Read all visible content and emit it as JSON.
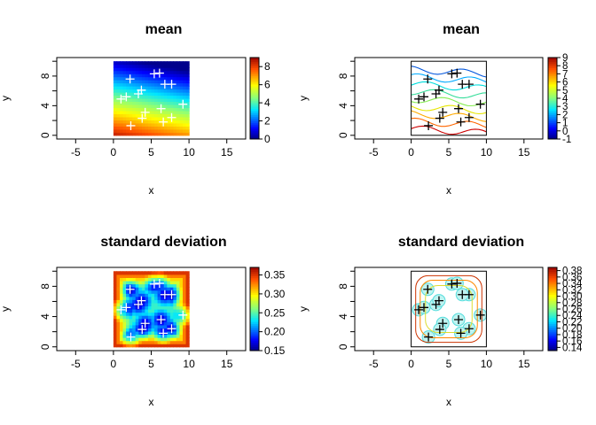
{
  "chart_data": [
    {
      "type": "heatmap",
      "title": "mean",
      "xlabel": "x",
      "ylabel": "y",
      "x_ticks": [
        "-5",
        "0",
        "5",
        "10",
        "15"
      ],
      "y_ticks": [
        "0",
        "4",
        "8"
      ],
      "xlim": [
        -7.5,
        17.5
      ],
      "ylim": [
        -0.5,
        10.5
      ],
      "grid_extent": {
        "x": [
          0,
          10
        ],
        "y": [
          0,
          10
        ]
      },
      "colorbar": {
        "ticks": [
          "0",
          "2",
          "4",
          "6",
          "8"
        ],
        "range": [
          0,
          9
        ]
      },
      "points": [
        [
          2.2,
          7.6
        ],
        [
          5.4,
          8.3
        ],
        [
          6.1,
          8.4
        ],
        [
          7.7,
          6.9
        ],
        [
          6.8,
          6.9
        ],
        [
          3.3,
          5.6
        ],
        [
          3.7,
          6.1
        ],
        [
          1.0,
          4.9
        ],
        [
          1.7,
          5.2
        ],
        [
          9.2,
          4.2
        ],
        [
          4.2,
          3.1
        ],
        [
          3.8,
          2.3
        ],
        [
          6.3,
          3.6
        ],
        [
          7.7,
          2.4
        ],
        [
          6.6,
          1.8
        ],
        [
          2.3,
          1.3
        ]
      ],
      "marker": "+"
    },
    {
      "type": "contour",
      "title": "mean",
      "xlabel": "x",
      "ylabel": "y",
      "x_ticks": [
        "-5",
        "0",
        "5",
        "10",
        "15"
      ],
      "y_ticks": [
        "0",
        "4",
        "8"
      ],
      "xlim": [
        -7.5,
        17.5
      ],
      "ylim": [
        -0.5,
        10.5
      ],
      "colorbar": {
        "ticks": [
          "9",
          "8",
          "7",
          "6",
          "5",
          "4",
          "3",
          "2",
          "1",
          "0",
          "-1"
        ],
        "range": [
          -1,
          9
        ]
      },
      "points": [
        [
          2.2,
          7.6
        ],
        [
          5.4,
          8.3
        ],
        [
          6.1,
          8.4
        ],
        [
          7.7,
          6.9
        ],
        [
          6.8,
          6.9
        ],
        [
          3.3,
          5.6
        ],
        [
          3.7,
          6.1
        ],
        [
          1.0,
          4.9
        ],
        [
          1.7,
          5.2
        ],
        [
          9.2,
          4.2
        ],
        [
          4.2,
          3.1
        ],
        [
          3.8,
          2.3
        ],
        [
          6.3,
          3.6
        ],
        [
          7.7,
          2.4
        ],
        [
          6.6,
          1.8
        ],
        [
          2.3,
          1.3
        ]
      ],
      "marker": "+"
    },
    {
      "type": "heatmap",
      "title": "standard deviation",
      "xlabel": "x",
      "ylabel": "y",
      "x_ticks": [
        "-5",
        "0",
        "5",
        "10",
        "15"
      ],
      "y_ticks": [
        "0",
        "4",
        "8"
      ],
      "xlim": [
        -7.5,
        17.5
      ],
      "ylim": [
        -0.5,
        10.5
      ],
      "colorbar": {
        "ticks": [
          "0.35",
          "0.30",
          "0.25",
          "0.20",
          "0.15"
        ],
        "range": [
          0.15,
          0.37
        ]
      },
      "points": [
        [
          2.2,
          7.6
        ],
        [
          5.4,
          8.3
        ],
        [
          6.1,
          8.4
        ],
        [
          7.7,
          6.9
        ],
        [
          6.8,
          6.9
        ],
        [
          3.3,
          5.6
        ],
        [
          3.7,
          6.1
        ],
        [
          1.0,
          4.9
        ],
        [
          1.7,
          5.2
        ],
        [
          9.2,
          4.2
        ],
        [
          4.2,
          3.1
        ],
        [
          3.8,
          2.3
        ],
        [
          6.3,
          3.6
        ],
        [
          7.7,
          2.4
        ],
        [
          6.6,
          1.8
        ],
        [
          2.3,
          1.3
        ]
      ],
      "marker": "+"
    },
    {
      "type": "contour",
      "title": "standard deviation",
      "xlabel": "x",
      "ylabel": "y",
      "x_ticks": [
        "-5",
        "0",
        "5",
        "10",
        "15"
      ],
      "y_ticks": [
        "0",
        "4",
        "8"
      ],
      "xlim": [
        -7.5,
        17.5
      ],
      "ylim": [
        -0.5,
        10.5
      ],
      "colorbar": {
        "ticks": [
          "0.38",
          "0.36",
          "0.34",
          "0.32",
          "0.30",
          "0.28",
          "0.26",
          "0.24",
          "0.22",
          "0.20",
          "0.18",
          "0.16",
          "0.14"
        ],
        "range": [
          0.13,
          0.39
        ]
      },
      "points": [
        [
          2.2,
          7.6
        ],
        [
          5.4,
          8.3
        ],
        [
          6.1,
          8.4
        ],
        [
          7.7,
          6.9
        ],
        [
          6.8,
          6.9
        ],
        [
          3.3,
          5.6
        ],
        [
          3.7,
          6.1
        ],
        [
          1.0,
          4.9
        ],
        [
          1.7,
          5.2
        ],
        [
          9.2,
          4.2
        ],
        [
          4.2,
          3.1
        ],
        [
          3.8,
          2.3
        ],
        [
          6.3,
          3.6
        ],
        [
          7.7,
          2.4
        ],
        [
          6.6,
          1.8
        ],
        [
          2.3,
          1.3
        ]
      ],
      "marker": "+"
    }
  ],
  "colors": {
    "axis": "#000000",
    "point_on_heatmap": "#ffffff",
    "point_on_contour": "#000000"
  }
}
